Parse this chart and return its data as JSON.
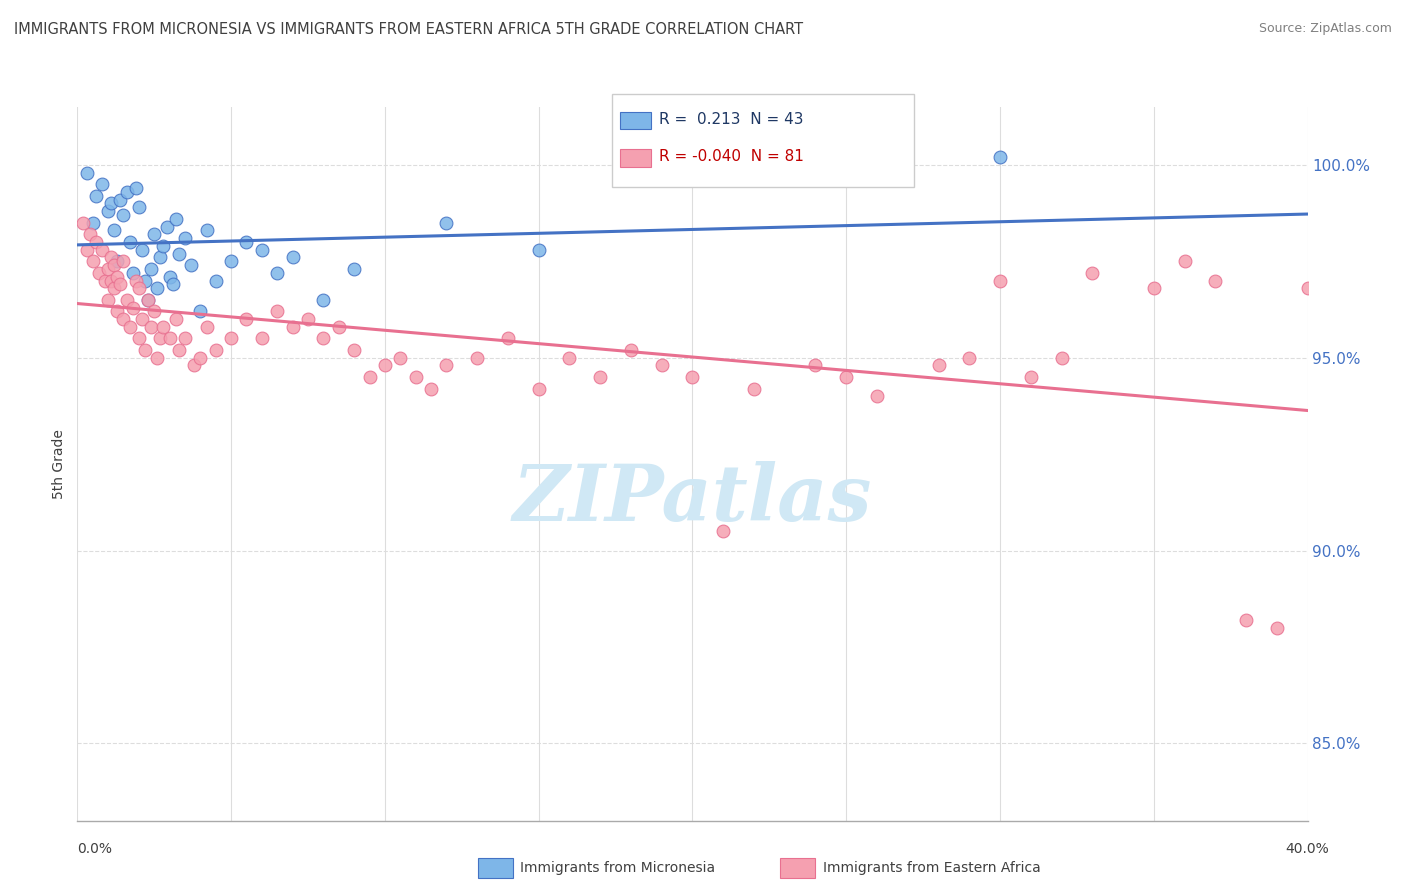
{
  "title": "IMMIGRANTS FROM MICRONESIA VS IMMIGRANTS FROM EASTERN AFRICA 5TH GRADE CORRELATION CHART",
  "source": "Source: ZipAtlas.com",
  "ylabel": "5th Grade",
  "yaxis_ticks": [
    85.0,
    90.0,
    95.0,
    100.0
  ],
  "yaxis_labels": [
    "85.0%",
    "90.0%",
    "95.0%",
    "100.0%"
  ],
  "xlim": [
    0.0,
    40.0
  ],
  "ylim": [
    83.0,
    101.5
  ],
  "legend_blue_label": "Immigrants from Micronesia",
  "legend_pink_label": "Immigrants from Eastern Africa",
  "R_blue": 0.213,
  "N_blue": 43,
  "R_pink": -0.04,
  "N_pink": 81,
  "blue_color": "#7EB6E8",
  "pink_color": "#F5A0B0",
  "blue_line_color": "#4472C4",
  "pink_line_color": "#E87090",
  "title_color": "#404040",
  "source_color": "#808080",
  "watermark_color": "#D0E8F5",
  "blue_dots_x": [
    0.3,
    0.5,
    0.6,
    0.8,
    1.0,
    1.1,
    1.2,
    1.3,
    1.4,
    1.5,
    1.6,
    1.7,
    1.8,
    1.9,
    2.0,
    2.1,
    2.2,
    2.3,
    2.4,
    2.5,
    2.6,
    2.7,
    2.8,
    2.9,
    3.0,
    3.1,
    3.2,
    3.3,
    3.5,
    3.7,
    4.0,
    4.2,
    4.5,
    5.0,
    5.5,
    6.0,
    6.5,
    7.0,
    8.0,
    9.0,
    12.0,
    15.0,
    30.0
  ],
  "blue_dots_y": [
    99.8,
    98.5,
    99.2,
    99.5,
    98.8,
    99.0,
    98.3,
    97.5,
    99.1,
    98.7,
    99.3,
    98.0,
    97.2,
    99.4,
    98.9,
    97.8,
    97.0,
    96.5,
    97.3,
    98.2,
    96.8,
    97.6,
    97.9,
    98.4,
    97.1,
    96.9,
    98.6,
    97.7,
    98.1,
    97.4,
    96.2,
    98.3,
    97.0,
    97.5,
    98.0,
    97.8,
    97.2,
    97.6,
    96.5,
    97.3,
    98.5,
    97.8,
    100.2
  ],
  "pink_dots_x": [
    0.2,
    0.3,
    0.4,
    0.5,
    0.6,
    0.7,
    0.8,
    0.9,
    1.0,
    1.0,
    1.1,
    1.1,
    1.2,
    1.2,
    1.3,
    1.3,
    1.4,
    1.5,
    1.5,
    1.6,
    1.7,
    1.8,
    1.9,
    2.0,
    2.0,
    2.1,
    2.2,
    2.3,
    2.4,
    2.5,
    2.6,
    2.7,
    2.8,
    3.0,
    3.2,
    3.3,
    3.5,
    3.8,
    4.0,
    4.2,
    4.5,
    5.0,
    5.5,
    6.0,
    6.5,
    7.0,
    7.5,
    8.0,
    8.5,
    9.0,
    9.5,
    10.0,
    10.5,
    11.0,
    11.5,
    12.0,
    13.0,
    14.0,
    15.0,
    16.0,
    17.0,
    18.0,
    19.0,
    20.0,
    21.0,
    22.0,
    24.0,
    25.0,
    26.0,
    28.0,
    29.0,
    30.0,
    31.0,
    32.0,
    33.0,
    35.0,
    36.0,
    37.0,
    38.0,
    39.0,
    40.0
  ],
  "pink_dots_y": [
    98.5,
    97.8,
    98.2,
    97.5,
    98.0,
    97.2,
    97.8,
    97.0,
    97.3,
    96.5,
    97.6,
    97.0,
    97.4,
    96.8,
    97.1,
    96.2,
    96.9,
    97.5,
    96.0,
    96.5,
    95.8,
    96.3,
    97.0,
    96.8,
    95.5,
    96.0,
    95.2,
    96.5,
    95.8,
    96.2,
    95.0,
    95.5,
    95.8,
    95.5,
    96.0,
    95.2,
    95.5,
    94.8,
    95.0,
    95.8,
    95.2,
    95.5,
    96.0,
    95.5,
    96.2,
    95.8,
    96.0,
    95.5,
    95.8,
    95.2,
    94.5,
    94.8,
    95.0,
    94.5,
    94.2,
    94.8,
    95.0,
    95.5,
    94.2,
    95.0,
    94.5,
    95.2,
    94.8,
    94.5,
    90.5,
    94.2,
    94.8,
    94.5,
    94.0,
    94.8,
    95.0,
    97.0,
    94.5,
    95.0,
    97.2,
    96.8,
    97.5,
    97.0,
    88.2,
    88.0,
    96.8
  ]
}
